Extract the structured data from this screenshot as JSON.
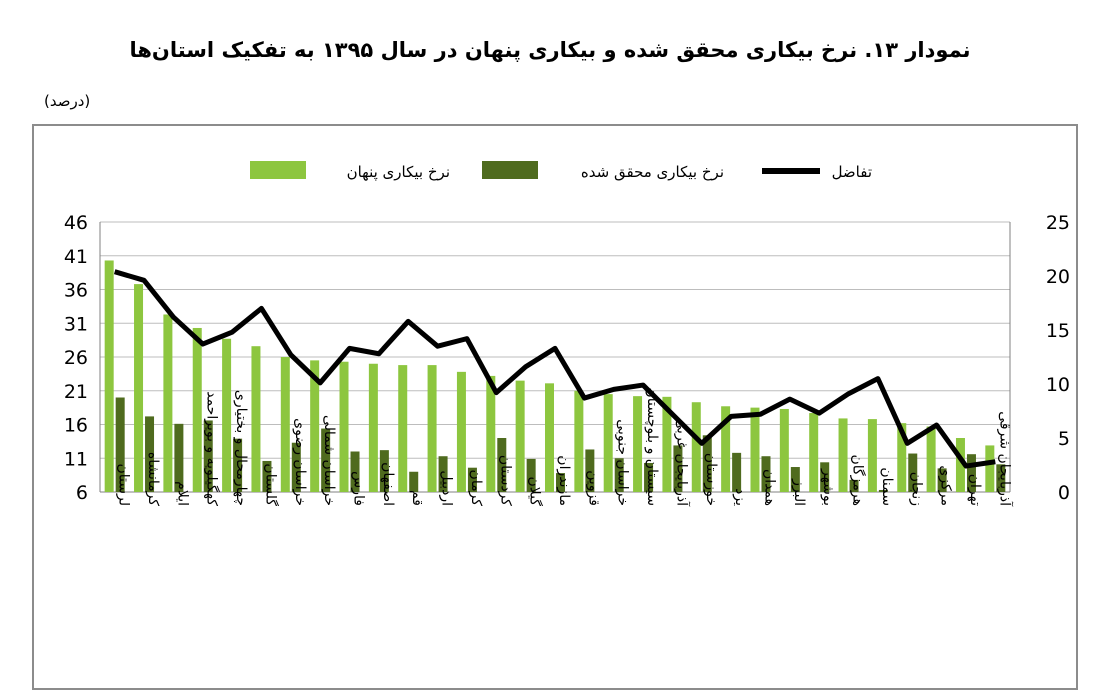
{
  "chart_data": {
    "type": "bar",
    "title": "نمودار ۱۳. نرخ بیکاری محقق شده و بیکاری پنهان در سال ۱۳۹۵ به تفکیک استان‌ها",
    "unit_label": "(درصد)",
    "categories": [
      "لرستان",
      "کرمانشاه",
      "ایلام",
      "کهگیلویه و بویراحمد",
      "چهارمحال و بختیاری",
      "گلستان",
      "خراسان رضوی",
      "خراسان شمالی",
      "فارس",
      "اصفهان",
      "قم",
      "اردبیل",
      "کرمان",
      "کردستان",
      "گیلان",
      "مازندران",
      "قزوین",
      "خراسان جنوبی",
      "سیستان و بلوچستان",
      "آذربایجان غربی",
      "خوزستان",
      "یزد",
      "همدان",
      "البرز",
      "بوشهر",
      "هرمزگان",
      "سمنان",
      "زنجان",
      "مرکزی",
      "تهران",
      "آذربایجان شرقی"
    ],
    "series": [
      {
        "name": "نرخ بیکاری پنهان",
        "axis": "left",
        "color": "#8dc63f",
        "values": [
          40.3,
          36.8,
          32.3,
          30.3,
          28.7,
          27.6,
          26.0,
          25.5,
          25.3,
          25.0,
          24.8,
          24.8,
          23.8,
          23.2,
          22.5,
          22.1,
          21.0,
          20.5,
          20.2,
          20.1,
          19.3,
          18.7,
          18.5,
          18.3,
          17.7,
          16.9,
          16.8,
          16.2,
          15.7,
          14.0,
          12.9
        ]
      },
      {
        "name": "نرخ بیکاری محقق شده",
        "axis": "left",
        "color": "#4f6b1e",
        "values": [
          20.0,
          17.2,
          16.1,
          16.6,
          13.9,
          10.6,
          13.3,
          15.4,
          12.0,
          12.2,
          9.0,
          11.3,
          9.6,
          14.0,
          10.9,
          8.8,
          12.3,
          11.0,
          10.3,
          12.9,
          14.4,
          11.8,
          11.3,
          9.7,
          10.4,
          7.8,
          6.3,
          11.7,
          9.5,
          11.6,
          10.1
        ]
      },
      {
        "name": "تفاضل",
        "axis": "right",
        "type": "line",
        "color": "#000000",
        "values": [
          20.4,
          19.6,
          16.2,
          13.7,
          14.8,
          17.0,
          12.7,
          10.1,
          13.3,
          12.8,
          15.8,
          13.5,
          14.2,
          9.2,
          11.6,
          13.3,
          8.7,
          9.5,
          9.9,
          7.2,
          4.5,
          7.0,
          7.2,
          8.6,
          7.3,
          9.1,
          10.5,
          4.5,
          6.2,
          2.4,
          2.8
        ]
      }
    ],
    "y_left": {
      "min": 6,
      "max": 46,
      "ticks": [
        "6",
        "11",
        "16",
        "21",
        "26",
        "31",
        "36",
        "41",
        "46"
      ]
    },
    "y_right": {
      "min": 0,
      "max": 25,
      "ticks": [
        "0",
        "5",
        "10",
        "15",
        "20",
        "25"
      ]
    },
    "legend_placement": "top",
    "grid": true
  }
}
